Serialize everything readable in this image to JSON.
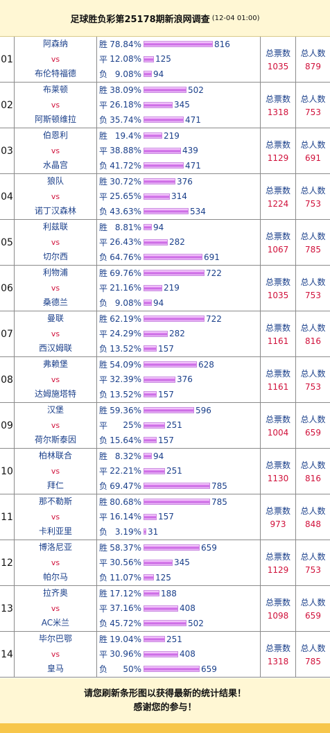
{
  "header": {
    "title": "足球胜负彩第25178期新浪网调查",
    "time": "(12-04 01:00)"
  },
  "labels": {
    "win": "胜",
    "draw": "平",
    "lose": "负",
    "vs": "vs",
    "total_votes": "总票数",
    "total_people": "总人数"
  },
  "matches": [
    {
      "no": "01",
      "home": "阿森纳",
      "away": "布伦特福德",
      "win_pct": "78.84%",
      "win": 816,
      "draw_pct": "12.08%",
      "draw": 125,
      "lose_pct": "9.08%",
      "lose": 94,
      "votes": 1035,
      "people": 879
    },
    {
      "no": "02",
      "home": "布莱顿",
      "away": "阿斯顿维拉",
      "win_pct": "38.09%",
      "win": 502,
      "draw_pct": "26.18%",
      "draw": 345,
      "lose_pct": "35.74%",
      "lose": 471,
      "votes": 1318,
      "people": 753
    },
    {
      "no": "03",
      "home": "伯恩利",
      "away": "水晶宫",
      "win_pct": "19.4%",
      "win": 219,
      "draw_pct": "38.88%",
      "draw": 439,
      "lose_pct": "41.72%",
      "lose": 471,
      "votes": 1129,
      "people": 691
    },
    {
      "no": "04",
      "home": "狼队",
      "away": "诺丁汉森林",
      "win_pct": "30.72%",
      "win": 376,
      "draw_pct": "25.65%",
      "draw": 314,
      "lose_pct": "43.63%",
      "lose": 534,
      "votes": 1224,
      "people": 753
    },
    {
      "no": "05",
      "home": "利兹联",
      "away": "切尔西",
      "win_pct": "8.81%",
      "win": 94,
      "draw_pct": "26.43%",
      "draw": 282,
      "lose_pct": "64.76%",
      "lose": 691,
      "votes": 1067,
      "people": 785
    },
    {
      "no": "06",
      "home": "利物浦",
      "away": "桑德兰",
      "win_pct": "69.76%",
      "win": 722,
      "draw_pct": "21.16%",
      "draw": 219,
      "lose_pct": "9.08%",
      "lose": 94,
      "votes": 1035,
      "people": 753
    },
    {
      "no": "07",
      "home": "曼联",
      "away": "西汉姆联",
      "win_pct": "62.19%",
      "win": 722,
      "draw_pct": "24.29%",
      "draw": 282,
      "lose_pct": "13.52%",
      "lose": 157,
      "votes": 1161,
      "people": 816
    },
    {
      "no": "08",
      "home": "弗赖堡",
      "away": "达姆施塔特",
      "win_pct": "54.09%",
      "win": 628,
      "draw_pct": "32.39%",
      "draw": 376,
      "lose_pct": "13.52%",
      "lose": 157,
      "votes": 1161,
      "people": 753
    },
    {
      "no": "09",
      "home": "汉堡",
      "away": "荷尔斯泰因",
      "win_pct": "59.36%",
      "win": 596,
      "draw_pct": "25%",
      "draw": 251,
      "lose_pct": "15.64%",
      "lose": 157,
      "votes": 1004,
      "people": 659
    },
    {
      "no": "10",
      "home": "柏林联合",
      "away": "拜仁",
      "win_pct": "8.32%",
      "win": 94,
      "draw_pct": "22.21%",
      "draw": 251,
      "lose_pct": "69.47%",
      "lose": 785,
      "votes": 1130,
      "people": 816
    },
    {
      "no": "11",
      "home": "那不勒斯",
      "away": "卡利亚里",
      "win_pct": "80.68%",
      "win": 785,
      "draw_pct": "16.14%",
      "draw": 157,
      "lose_pct": "3.19%",
      "lose": 31,
      "votes": 973,
      "people": 848
    },
    {
      "no": "12",
      "home": "博洛尼亚",
      "away": "帕尔马",
      "win_pct": "58.37%",
      "win": 659,
      "draw_pct": "30.56%",
      "draw": 345,
      "lose_pct": "11.07%",
      "lose": 125,
      "votes": 1129,
      "people": 753
    },
    {
      "no": "13",
      "home": "拉齐奥",
      "away": "AC米兰",
      "win_pct": "17.12%",
      "win": 188,
      "draw_pct": "37.16%",
      "draw": 408,
      "lose_pct": "45.72%",
      "lose": 502,
      "votes": 1098,
      "people": 659
    },
    {
      "no": "14",
      "home": "毕尔巴鄂",
      "away": "皇马",
      "win_pct": "19.04%",
      "win": 251,
      "draw_pct": "30.96%",
      "draw": 408,
      "lose_pct": "50%",
      "lose": 659,
      "votes": 1318,
      "people": 785
    }
  ],
  "footer": {
    "line1": "请您刷新条形图以获得最新的统计结果！",
    "line2": "感谢您的参与！"
  },
  "colors": {
    "bar": "#d872ef",
    "vs": "#d0103a",
    "value": "#d0103a",
    "text": "#1a3f8a"
  }
}
